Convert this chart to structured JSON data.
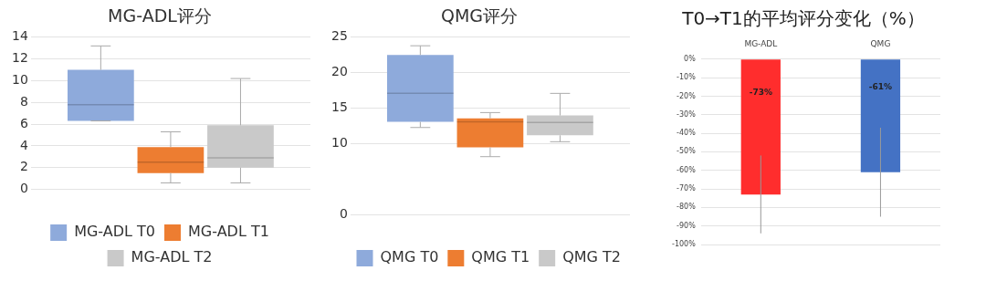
{
  "chart_data": [
    {
      "type": "box",
      "title": "MG-ADL评分",
      "categories": [
        null
      ],
      "ylim": [
        0,
        14
      ],
      "yticks": [
        0,
        2,
        4,
        6,
        8,
        10,
        12,
        14
      ],
      "grid": "y",
      "legend": "bottom",
      "series": [
        {
          "name": "MG-ADL T0",
          "color": "#8eaadb",
          "boxes": [
            {
              "low": 6.3,
              "q1": 6.3,
              "median": 7.8,
              "q3": 11.0,
              "high": 13.2
            }
          ]
        },
        {
          "name": "MG-ADL T1",
          "color": "#ed7d31",
          "boxes": [
            {
              "low": 0.6,
              "q1": 1.5,
              "median": 2.5,
              "q3": 3.9,
              "high": 5.3
            }
          ]
        },
        {
          "name": "MG-ADL T2",
          "color": "#c9c9c9",
          "boxes": [
            {
              "low": 0.6,
              "q1": 2.0,
              "median": 2.9,
              "q3": 5.9,
              "high": 10.2
            }
          ]
        }
      ]
    },
    {
      "type": "box",
      "title": "QMG评分",
      "categories": [
        null
      ],
      "ylim": [
        0,
        25
      ],
      "yticks": [
        0,
        10,
        15,
        20,
        25
      ],
      "grid": "y",
      "legend": "bottom right",
      "series": [
        {
          "name": "QMG T0",
          "color": "#8eaadb",
          "boxes": [
            {
              "low": 12.3,
              "q1": 13.1,
              "median": 17.1,
              "q3": 22.5,
              "high": 23.8
            }
          ]
        },
        {
          "name": "QMG T1",
          "color": "#ed7d31",
          "boxes": [
            {
              "low": 8.2,
              "q1": 9.5,
              "median": 13.1,
              "q3": 13.6,
              "high": 14.4
            }
          ]
        },
        {
          "name": "QMG T2",
          "color": "#c9c9c9",
          "boxes": [
            {
              "low": 10.3,
              "q1": 11.2,
              "median": 13.0,
              "q3": 14.0,
              "high": 17.1
            }
          ]
        }
      ]
    },
    {
      "type": "bar",
      "title": "T0→T1的平均评分变化（%）",
      "categories": [
        "MG-ADL",
        "QMG"
      ],
      "values": [
        -73,
        -61
      ],
      "colors": [
        "#ff2d2d",
        "#4472c4"
      ],
      "errors": [
        21,
        24
      ],
      "value_labels": [
        "-73%",
        "-61%"
      ],
      "ylim": [
        -100,
        0
      ],
      "yticks": [
        {
          "value": 0,
          "label": "0%"
        },
        {
          "value": -10,
          "label": "-10%"
        },
        {
          "value": -20,
          "label": "-20%"
        },
        {
          "value": -30,
          "label": "-30%"
        },
        {
          "value": -40,
          "label": "-40%"
        },
        {
          "value": -50,
          "label": "-50%"
        },
        {
          "value": -60,
          "label": "-60%"
        },
        {
          "value": -70,
          "label": "-70%"
        },
        {
          "value": -80,
          "label": "-80%"
        },
        {
          "value": -90,
          "label": "-90%"
        },
        {
          "value": -100,
          "label": "-100%"
        }
      ],
      "grid": "y"
    }
  ]
}
